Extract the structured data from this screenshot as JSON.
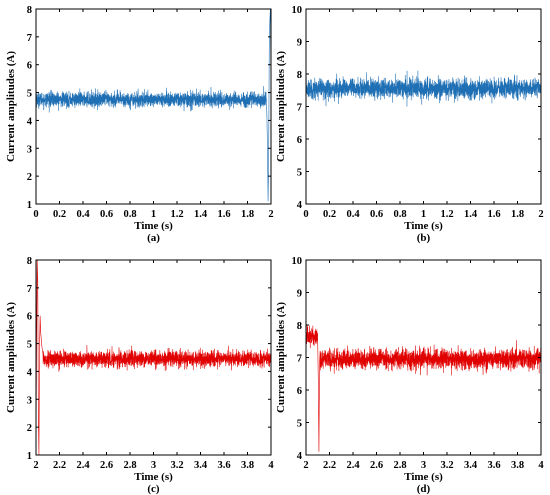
{
  "chart_data": [
    {
      "type": "line",
      "panel": "(a)",
      "xlabel": "Time (s)",
      "ylabel": "Current amplitudes (A)",
      "xlim": [
        0,
        2
      ],
      "ylim": [
        1,
        8
      ],
      "xticks": [
        0,
        0.2,
        0.4,
        0.6,
        0.8,
        1,
        1.2,
        1.4,
        1.6,
        1.8,
        2
      ],
      "xtick_labels": [
        "0",
        "0.2",
        "0.4",
        "0.6",
        "0.8",
        "1",
        "1.2",
        "1.4",
        "1.6",
        "1.8",
        "2"
      ],
      "yticks": [
        1,
        2,
        3,
        4,
        5,
        6,
        7,
        8
      ],
      "yticks_labels": [
        "1",
        "2",
        "3",
        "4",
        "5",
        "6",
        "7",
        "8"
      ],
      "color": "#1f6fb4",
      "series": [
        {
          "band": {
            "x_start": 0,
            "x_end": 1.96,
            "center": 4.75,
            "half_width": 0.28,
            "noise_max": 0.55
          },
          "tail": {
            "x": [
              1.96,
              1.965,
              1.97,
              1.975,
              1.98,
              1.985,
              1.99,
              1.995,
              2.0
            ],
            "y": [
              4.8,
              4.2,
              3.0,
              1.1,
              2.5,
              6.5,
              7.6,
              8.0,
              5.0
            ]
          }
        }
      ]
    },
    {
      "type": "line",
      "panel": "(b)",
      "xlabel": "Time (s)",
      "ylabel": "Current amplitudes (A)",
      "xlim": [
        0,
        2
      ],
      "ylim": [
        4,
        10
      ],
      "xticks": [
        0,
        0.2,
        0.4,
        0.6,
        0.8,
        1,
        1.2,
        1.4,
        1.6,
        1.8,
        2
      ],
      "xtick_labels": [
        "0",
        "0.2",
        "0.4",
        "0.6",
        "0.8",
        "1",
        "1.2",
        "1.4",
        "1.6",
        "1.8",
        "2"
      ],
      "yticks": [
        4,
        5,
        6,
        7,
        8,
        9,
        10
      ],
      "yticks_labels": [
        "4",
        "5",
        "6",
        "7",
        "8",
        "9",
        "10"
      ],
      "color": "#1f6fb4",
      "series": [
        {
          "band": {
            "x_start": 0,
            "x_end": 2,
            "center": 7.55,
            "half_width": 0.32,
            "noise_max": 0.55
          }
        }
      ]
    },
    {
      "type": "line",
      "panel": "(c)",
      "xlabel": "Time (s)",
      "ylabel": "Current amplitudes (A)",
      "xlim": [
        2,
        4
      ],
      "ylim": [
        1,
        8
      ],
      "xticks": [
        2,
        2.2,
        2.4,
        2.6,
        2.8,
        3,
        3.2,
        3.4,
        3.6,
        3.8,
        4
      ],
      "xtick_labels": [
        "2",
        "2.2",
        "2.4",
        "2.6",
        "2.8",
        "3",
        "3.2",
        "3.4",
        "3.6",
        "3.8",
        "4"
      ],
      "yticks": [
        1,
        2,
        3,
        4,
        5,
        6,
        7,
        8
      ],
      "yticks_labels": [
        "1",
        "2",
        "3",
        "4",
        "5",
        "6",
        "7",
        "8"
      ],
      "color": "#e10000",
      "series": [
        {
          "head": {
            "x": [
              2.0,
              2.005,
              2.01,
              2.015,
              2.02,
              2.025,
              2.03,
              2.035,
              2.04,
              2.05,
              2.06
            ],
            "y": [
              1.0,
              5.0,
              8.0,
              7.2,
              2.5,
              1.0,
              4.8,
              6.0,
              5.4,
              4.9,
              4.6
            ]
          },
          "band": {
            "x_start": 2.06,
            "x_end": 4,
            "center": 4.45,
            "half_width": 0.3,
            "noise_max": 0.65
          }
        }
      ]
    },
    {
      "type": "line",
      "panel": "(d)",
      "xlabel": "Time (s)",
      "ylabel": "Current amplitudes (A)",
      "xlim": [
        2,
        4
      ],
      "ylim": [
        4,
        10
      ],
      "xticks": [
        2,
        2.2,
        2.4,
        2.6,
        2.8,
        3,
        3.2,
        3.4,
        3.6,
        3.8,
        4
      ],
      "xtick_labels": [
        "2",
        "2.2",
        "2.4",
        "2.6",
        "2.8",
        "3",
        "3.2",
        "3.4",
        "3.6",
        "3.8",
        "4"
      ],
      "yticks": [
        4,
        5,
        6,
        7,
        8,
        9,
        10
      ],
      "yticks_labels": [
        "4",
        "5",
        "6",
        "7",
        "8",
        "9",
        "10"
      ],
      "color": "#e10000",
      "series": [
        {
          "head_band": {
            "x_start": 2.0,
            "x_end": 2.1,
            "center": 7.65,
            "half_width": 0.3,
            "noise_max": 0.5
          },
          "dip": {
            "x": [
              2.1,
              2.105,
              2.11,
              2.115,
              2.12
            ],
            "y": [
              7.4,
              6.2,
              4.1,
              6.8,
              7.2
            ]
          },
          "band": {
            "x_start": 2.12,
            "x_end": 4,
            "center": 6.95,
            "half_width": 0.33,
            "noise_max": 0.75
          }
        }
      ]
    }
  ]
}
